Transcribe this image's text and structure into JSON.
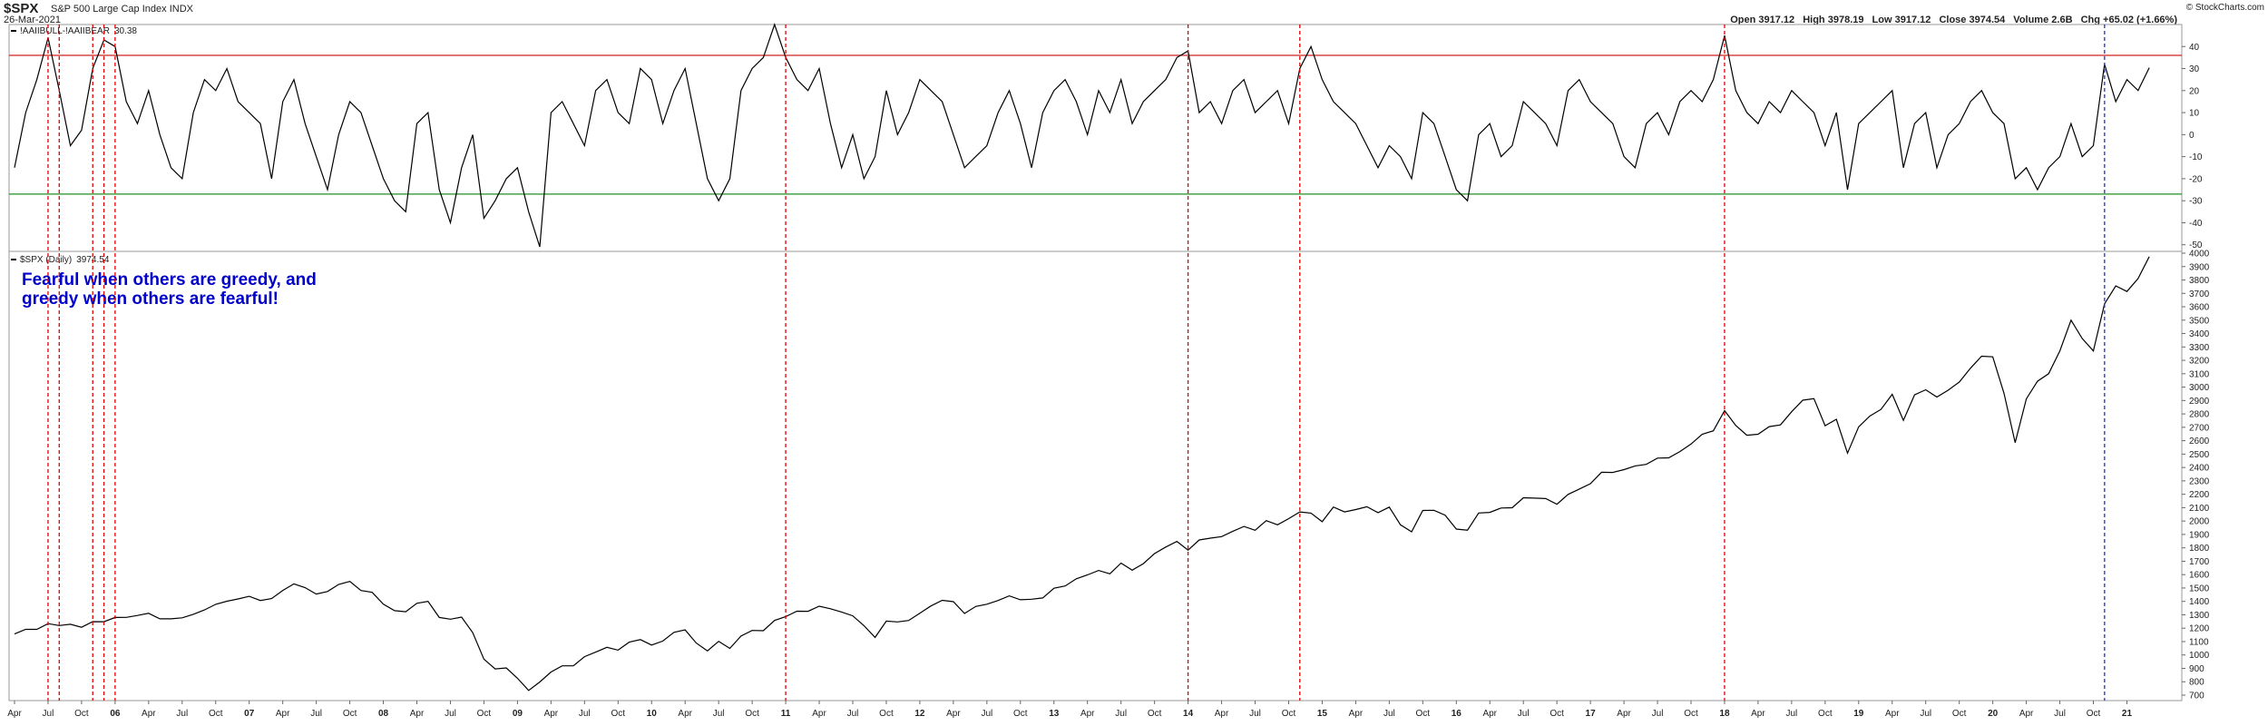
{
  "header": {
    "symbol": "$SPX",
    "name": "S&P 500 Large Cap Index",
    "exchange": "INDX",
    "date": "26-Mar-2021",
    "copyright": "© StockCharts.com",
    "quote": [
      {
        "label": "Open",
        "value": 3917.12
      },
      {
        "label": "High",
        "value": 3978.19
      },
      {
        "label": "Low",
        "value": 3917.12
      },
      {
        "label": "Close",
        "value": 3974.54
      },
      {
        "label": "Volume",
        "value": "2.6B"
      },
      {
        "label": "Chg",
        "value": "+65.02 (+1.66%)"
      }
    ]
  },
  "chart_data": {
    "type": "line",
    "x": [
      "2005-04",
      "2005-05",
      "2005-06",
      "2005-07",
      "2005-08",
      "2005-09",
      "2005-10",
      "2005-11",
      "2005-12",
      "2006-01",
      "2006-02",
      "2006-03",
      "2006-04",
      "2006-05",
      "2006-06",
      "2006-07",
      "2006-08",
      "2006-09",
      "2006-10",
      "2006-11",
      "2006-12",
      "2007-01",
      "2007-02",
      "2007-03",
      "2007-04",
      "2007-05",
      "2007-06",
      "2007-07",
      "2007-08",
      "2007-09",
      "2007-10",
      "2007-11",
      "2007-12",
      "2008-01",
      "2008-02",
      "2008-03",
      "2008-04",
      "2008-05",
      "2008-06",
      "2008-07",
      "2008-08",
      "2008-09",
      "2008-10",
      "2008-11",
      "2008-12",
      "2009-01",
      "2009-02",
      "2009-03",
      "2009-04",
      "2009-05",
      "2009-06",
      "2009-07",
      "2009-08",
      "2009-09",
      "2009-10",
      "2009-11",
      "2009-12",
      "2010-01",
      "2010-02",
      "2010-03",
      "2010-04",
      "2010-05",
      "2010-06",
      "2010-07",
      "2010-08",
      "2010-09",
      "2010-10",
      "2010-11",
      "2010-12",
      "2011-01",
      "2011-02",
      "2011-03",
      "2011-04",
      "2011-05",
      "2011-06",
      "2011-07",
      "2011-08",
      "2011-09",
      "2011-10",
      "2011-11",
      "2011-12",
      "2012-01",
      "2012-02",
      "2012-03",
      "2012-04",
      "2012-05",
      "2012-06",
      "2012-07",
      "2012-08",
      "2012-09",
      "2012-10",
      "2012-11",
      "2012-12",
      "2013-01",
      "2013-02",
      "2013-03",
      "2013-04",
      "2013-05",
      "2013-06",
      "2013-07",
      "2013-08",
      "2013-09",
      "2013-10",
      "2013-11",
      "2013-12",
      "2014-01",
      "2014-02",
      "2014-03",
      "2014-04",
      "2014-05",
      "2014-06",
      "2014-07",
      "2014-08",
      "2014-09",
      "2014-10",
      "2014-11",
      "2014-12",
      "2015-01",
      "2015-02",
      "2015-03",
      "2015-04",
      "2015-05",
      "2015-06",
      "2015-07",
      "2015-08",
      "2015-09",
      "2015-10",
      "2015-11",
      "2015-12",
      "2016-01",
      "2016-02",
      "2016-03",
      "2016-04",
      "2016-05",
      "2016-06",
      "2016-07",
      "2016-08",
      "2016-09",
      "2016-10",
      "2016-11",
      "2016-12",
      "2017-01",
      "2017-02",
      "2017-03",
      "2017-04",
      "2017-05",
      "2017-06",
      "2017-07",
      "2017-08",
      "2017-09",
      "2017-10",
      "2017-11",
      "2017-12",
      "2018-01",
      "2018-02",
      "2018-03",
      "2018-04",
      "2018-05",
      "2018-06",
      "2018-07",
      "2018-08",
      "2018-09",
      "2018-10",
      "2018-11",
      "2018-12",
      "2019-01",
      "2019-02",
      "2019-03",
      "2019-04",
      "2019-05",
      "2019-06",
      "2019-07",
      "2019-08",
      "2019-09",
      "2019-10",
      "2019-11",
      "2019-12",
      "2020-01",
      "2020-02",
      "2020-03",
      "2020-04",
      "2020-05",
      "2020-06",
      "2020-07",
      "2020-08",
      "2020-09",
      "2020-10",
      "2020-11",
      "2020-12",
      "2021-01",
      "2021-02",
      "2021-03"
    ],
    "xticks": [
      {
        "value": "2005-04",
        "label": "Apr"
      },
      {
        "value": "2005-07",
        "label": "Jul"
      },
      {
        "value": "2005-10",
        "label": "Oct"
      },
      {
        "value": "2006-01",
        "label": "06"
      },
      {
        "value": "2006-04",
        "label": "Apr"
      },
      {
        "value": "2006-07",
        "label": "Jul"
      },
      {
        "value": "2006-10",
        "label": "Oct"
      },
      {
        "value": "2007-01",
        "label": "07"
      },
      {
        "value": "2007-04",
        "label": "Apr"
      },
      {
        "value": "2007-07",
        "label": "Jul"
      },
      {
        "value": "2007-10",
        "label": "Oct"
      },
      {
        "value": "2008-01",
        "label": "08"
      },
      {
        "value": "2008-04",
        "label": "Apr"
      },
      {
        "value": "2008-07",
        "label": "Jul"
      },
      {
        "value": "2008-10",
        "label": "Oct"
      },
      {
        "value": "2009-01",
        "label": "09"
      },
      {
        "value": "2009-04",
        "label": "Apr"
      },
      {
        "value": "2009-07",
        "label": "Jul"
      },
      {
        "value": "2009-10",
        "label": "Oct"
      },
      {
        "value": "2010-01",
        "label": "10"
      },
      {
        "value": "2010-04",
        "label": "Apr"
      },
      {
        "value": "2010-07",
        "label": "Jul"
      },
      {
        "value": "2010-10",
        "label": "Oct"
      },
      {
        "value": "2011-01",
        "label": "11"
      },
      {
        "value": "2011-04",
        "label": "Apr"
      },
      {
        "value": "2011-07",
        "label": "Jul"
      },
      {
        "value": "2011-10",
        "label": "Oct"
      },
      {
        "value": "2012-01",
        "label": "12"
      },
      {
        "value": "2012-04",
        "label": "Apr"
      },
      {
        "value": "2012-07",
        "label": "Jul"
      },
      {
        "value": "2012-10",
        "label": "Oct"
      },
      {
        "value": "2013-01",
        "label": "13"
      },
      {
        "value": "2013-04",
        "label": "Apr"
      },
      {
        "value": "2013-07",
        "label": "Jul"
      },
      {
        "value": "2013-10",
        "label": "Oct"
      },
      {
        "value": "2014-01",
        "label": "14"
      },
      {
        "value": "2014-04",
        "label": "Apr"
      },
      {
        "value": "2014-07",
        "label": "Jul"
      },
      {
        "value": "2014-10",
        "label": "Oct"
      },
      {
        "value": "2015-01",
        "label": "15"
      },
      {
        "value": "2015-04",
        "label": "Apr"
      },
      {
        "value": "2015-07",
        "label": "Jul"
      },
      {
        "value": "2015-10",
        "label": "Oct"
      },
      {
        "value": "2016-01",
        "label": "16"
      },
      {
        "value": "2016-04",
        "label": "Apr"
      },
      {
        "value": "2016-07",
        "label": "Jul"
      },
      {
        "value": "2016-10",
        "label": "Oct"
      },
      {
        "value": "2017-01",
        "label": "17"
      },
      {
        "value": "2017-04",
        "label": "Apr"
      },
      {
        "value": "2017-07",
        "label": "Jul"
      },
      {
        "value": "2017-10",
        "label": "Oct"
      },
      {
        "value": "2018-01",
        "label": "18"
      },
      {
        "value": "2018-04",
        "label": "Apr"
      },
      {
        "value": "2018-07",
        "label": "Jul"
      },
      {
        "value": "2018-10",
        "label": "Oct"
      },
      {
        "value": "2019-01",
        "label": "19"
      },
      {
        "value": "2019-04",
        "label": "Apr"
      },
      {
        "value": "2019-07",
        "label": "Jul"
      },
      {
        "value": "2019-10",
        "label": "Oct"
      },
      {
        "value": "2020-01",
        "label": "20"
      },
      {
        "value": "2020-04",
        "label": "Apr"
      },
      {
        "value": "2020-07",
        "label": "Jul"
      },
      {
        "value": "2020-10",
        "label": "Oct"
      },
      {
        "value": "2021-01",
        "label": "21"
      }
    ],
    "signals": [
      {
        "x": "2005-07",
        "color": "#e00000"
      },
      {
        "x": "2005-08",
        "color": "#e00000"
      },
      {
        "x": "2005-11",
        "color": "#e00000"
      },
      {
        "x": "2005-12",
        "color": "#e00000"
      },
      {
        "x": "2006-01",
        "color": "#e00000"
      },
      {
        "x": "2011-01",
        "color": "#e00000"
      },
      {
        "x": "2014-01",
        "color": "#e00000"
      },
      {
        "x": "2014-11",
        "color": "#e00000"
      },
      {
        "x": "2018-01",
        "color": "#e00000"
      },
      {
        "x": "2020-11",
        "color": "#2030d0"
      }
    ],
    "panels": [
      {
        "ylim": [
          -53,
          50
        ],
        "yticks": [
          40,
          30,
          20,
          10,
          0,
          -10,
          -20,
          -30,
          -40,
          -50
        ],
        "reference_lines": [
          {
            "value": 36,
            "color": "#d02020"
          },
          {
            "value": -27,
            "color": "#209020"
          }
        ],
        "series": [
          {
            "name": "!AAIIBULL-!AAIIBEAR",
            "color": "#000000",
            "values": [
              -15,
              10,
              25,
              44,
              20,
              -5,
              2,
              30,
              43,
              40,
              15,
              5,
              20,
              0,
              -15,
              -20,
              10,
              25,
              20,
              30,
              15,
              10,
              5,
              -20,
              15,
              25,
              5,
              -10,
              -25,
              0,
              15,
              10,
              -5,
              -20,
              -30,
              -35,
              5,
              10,
              -25,
              -40,
              -15,
              0,
              -38,
              -30,
              -20,
              -15,
              -35,
              -51,
              10,
              15,
              5,
              -5,
              20,
              25,
              10,
              5,
              30,
              25,
              5,
              20,
              30,
              5,
              -20,
              -30,
              -20,
              20,
              30,
              35,
              50,
              35,
              25,
              20,
              30,
              5,
              -15,
              0,
              -20,
              -10,
              20,
              0,
              10,
              25,
              20,
              15,
              0,
              -15,
              -10,
              -5,
              10,
              20,
              5,
              -15,
              10,
              20,
              25,
              15,
              0,
              20,
              10,
              25,
              5,
              15,
              20,
              25,
              35,
              38,
              10,
              15,
              5,
              20,
              25,
              10,
              15,
              20,
              5,
              30,
              40,
              25,
              15,
              10,
              5,
              -5,
              -15,
              -5,
              -10,
              -20,
              10,
              5,
              -10,
              -25,
              -30,
              0,
              5,
              -10,
              -5,
              15,
              10,
              5,
              -5,
              20,
              25,
              15,
              10,
              5,
              -10,
              -15,
              5,
              10,
              0,
              15,
              20,
              15,
              25,
              45,
              20,
              10,
              5,
              15,
              10,
              20,
              15,
              10,
              -5,
              10,
              -25,
              5,
              10,
              15,
              20,
              -15,
              5,
              10,
              -15,
              0,
              5,
              15,
              20,
              10,
              5,
              -20,
              -15,
              -25,
              -15,
              -10,
              5,
              -10,
              -5,
              32,
              15,
              25,
              20,
              30.38
            ]
          }
        ]
      },
      {
        "ylim": [
          700,
          4000
        ],
        "yticks": [
          4000,
          3900,
          3800,
          3700,
          3600,
          3500,
          3400,
          3300,
          3200,
          3100,
          3000,
          2900,
          2800,
          2700,
          2600,
          2500,
          2400,
          2300,
          2200,
          2100,
          2000,
          1900,
          1800,
          1700,
          1600,
          1500,
          1400,
          1300,
          1200,
          1100,
          1000,
          900,
          800,
          700
        ],
        "annotation": [
          "Fearful when others are greedy, and",
          "greedy when others are fearful!"
        ],
        "series": [
          {
            "name": "$SPX (Daily)",
            "color": "#000000",
            "values": [
              1157,
              1191,
              1191,
              1234,
              1220,
              1229,
              1207,
              1249,
              1248,
              1280,
              1281,
              1295,
              1311,
              1270,
              1270,
              1277,
              1304,
              1336,
              1378,
              1401,
              1418,
              1438,
              1407,
              1421,
              1482,
              1531,
              1503,
              1455,
              1474,
              1527,
              1549,
              1481,
              1468,
              1379,
              1331,
              1323,
              1386,
              1400,
              1280,
              1267,
              1283,
              1166,
              969,
              896,
              903,
              826,
              735,
              798,
              873,
              919,
              919,
              987,
              1021,
              1057,
              1036,
              1096,
              1115,
              1074,
              1104,
              1169,
              1187,
              1089,
              1031,
              1102,
              1049,
              1141,
              1183,
              1181,
              1258,
              1286,
              1327,
              1326,
              1364,
              1345,
              1321,
              1292,
              1219,
              1131,
              1253,
              1247,
              1258,
              1312,
              1366,
              1408,
              1398,
              1310,
              1362,
              1379,
              1407,
              1441,
              1412,
              1416,
              1426,
              1498,
              1515,
              1569,
              1598,
              1631,
              1606,
              1686,
              1633,
              1682,
              1757,
              1806,
              1848,
              1783,
              1859,
              1872,
              1884,
              1924,
              1960,
              1931,
              2003,
              1972,
              2018,
              2068,
              2059,
              1995,
              2105,
              2068,
              2086,
              2107,
              2063,
              2104,
              1972,
              1920,
              2079,
              2080,
              2044,
              1940,
              1932,
              2060,
              2065,
              2097,
              2099,
              2174,
              2171,
              2168,
              2126,
              2199,
              2239,
              2279,
              2364,
              2363,
              2384,
              2412,
              2423,
              2470,
              2472,
              2519,
              2575,
              2648,
              2674,
              2824,
              2714,
              2641,
              2648,
              2705,
              2718,
              2816,
              2902,
              2914,
              2712,
              2760,
              2507,
              2704,
              2784,
              2834,
              2946,
              2752,
              2942,
              2980,
              2926,
              2977,
              3038,
              3141,
              3231,
              3226,
              2954,
              2585,
              2912,
              3044,
              3100,
              3271,
              3500,
              3363,
              3270,
              3622,
              3756,
              3714,
              3811,
              3974.54
            ]
          }
        ]
      }
    ]
  }
}
